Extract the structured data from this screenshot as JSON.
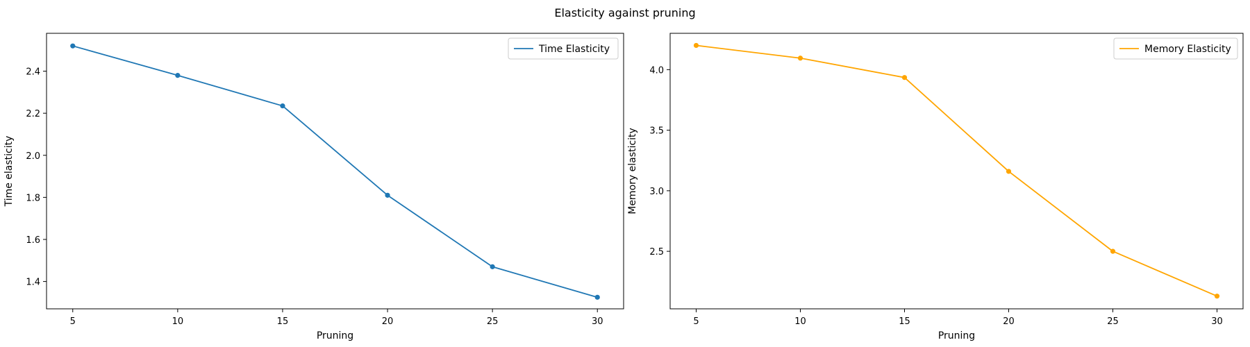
{
  "figure": {
    "title": "Elasticity against pruning"
  },
  "chart_data": [
    {
      "type": "line",
      "title": "",
      "xlabel": "Pruning",
      "ylabel": "Time elasticity",
      "x": [
        5,
        10,
        15,
        20,
        25,
        30
      ],
      "xticks": [
        "5",
        "10",
        "15",
        "20",
        "25",
        "30"
      ],
      "xlim": [
        3.75,
        31.25
      ],
      "yticks": [
        "1.4",
        "1.6",
        "1.8",
        "2.0",
        "2.2",
        "2.4"
      ],
      "ytick_values": [
        1.4,
        1.6,
        1.8,
        2.0,
        2.2,
        2.4
      ],
      "ylim": [
        1.27,
        2.58
      ],
      "grid": false,
      "legend_position": "top-right",
      "series": [
        {
          "name": "Time Elasticity",
          "color": "#1f77b4",
          "values": [
            2.52,
            2.38,
            2.235,
            1.81,
            1.47,
            1.325
          ]
        }
      ]
    },
    {
      "type": "line",
      "title": "",
      "xlabel": "Pruning",
      "ylabel": "Memory elasticity",
      "x": [
        5,
        10,
        15,
        20,
        25,
        30
      ],
      "xticks": [
        "5",
        "10",
        "15",
        "20",
        "25",
        "30"
      ],
      "xlim": [
        3.75,
        31.25
      ],
      "yticks": [
        "2.5",
        "3.0",
        "3.5",
        "4.0"
      ],
      "ytick_values": [
        2.5,
        3.0,
        3.5,
        4.0
      ],
      "ylim": [
        2.025,
        4.3
      ],
      "grid": false,
      "legend_position": "top-right",
      "series": [
        {
          "name": "Memory Elasticity",
          "color": "#ffa500",
          "values": [
            4.2,
            4.095,
            3.935,
            3.16,
            2.5,
            2.13
          ]
        }
      ]
    }
  ]
}
